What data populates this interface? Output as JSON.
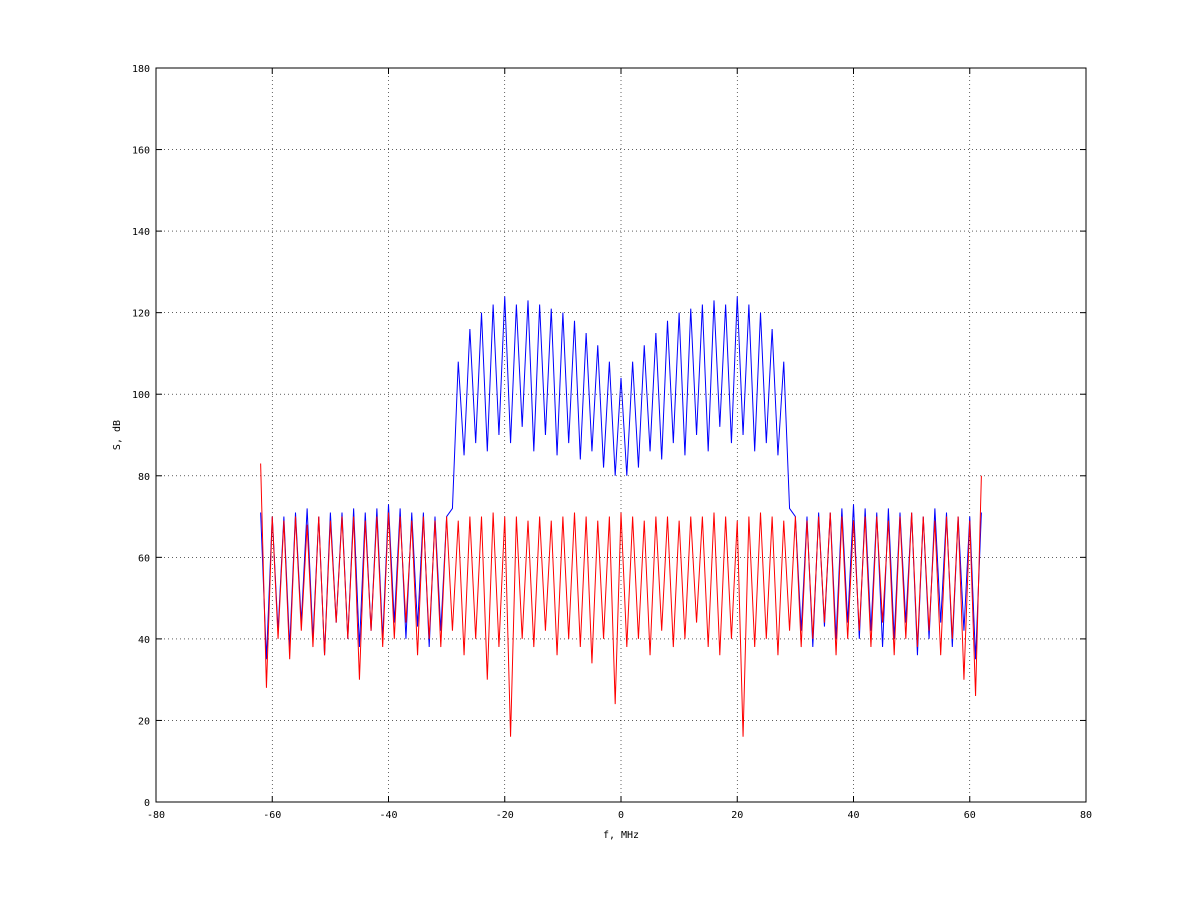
{
  "chart_data": {
    "type": "line",
    "xlabel": "f, MHz",
    "ylabel": "S, dB",
    "xlim": [
      -80,
      80
    ],
    "xticks": [
      -80,
      -60,
      -40,
      -20,
      0,
      20,
      40,
      60,
      80
    ],
    "ylim": [
      0,
      180
    ],
    "yticks": [
      0,
      20,
      40,
      60,
      80,
      100,
      120,
      140,
      160,
      180
    ],
    "grid": true,
    "x": [
      -62,
      -61,
      -60,
      -59,
      -58,
      -57,
      -56,
      -55,
      -54,
      -53,
      -52,
      -51,
      -50,
      -49,
      -48,
      -47,
      -46,
      -45,
      -44,
      -43,
      -42,
      -41,
      -40,
      -39,
      -38,
      -37,
      -36,
      -35,
      -34,
      -33,
      -32,
      -31,
      -30,
      -29,
      -28,
      -27,
      -26,
      -25,
      -24,
      -23,
      -22,
      -21,
      -20,
      -19,
      -18,
      -17,
      -16,
      -15,
      -14,
      -13,
      -12,
      -11,
      -10,
      -9,
      -8,
      -7,
      -6,
      -5,
      -4,
      -3,
      -2,
      -1,
      0,
      1,
      2,
      3,
      4,
      5,
      6,
      7,
      8,
      9,
      10,
      11,
      12,
      13,
      14,
      15,
      16,
      17,
      18,
      19,
      20,
      21,
      22,
      23,
      24,
      25,
      26,
      27,
      28,
      29,
      30,
      31,
      32,
      33,
      34,
      35,
      36,
      37,
      38,
      39,
      40,
      41,
      42,
      43,
      44,
      45,
      46,
      47,
      48,
      49,
      50,
      51,
      52,
      53,
      54,
      55,
      56,
      57,
      58,
      59,
      60,
      61,
      62
    ],
    "series": [
      {
        "color": "#0000ff",
        "values": [
          71,
          35,
          70,
          42,
          70,
          38,
          71,
          44,
          72,
          40,
          70,
          36,
          71,
          44,
          71,
          40,
          72,
          38,
          71,
          42,
          72,
          40,
          73,
          44,
          72,
          40,
          71,
          43,
          71,
          38,
          70,
          42,
          70,
          72,
          108,
          85,
          116,
          88,
          120,
          86,
          122,
          90,
          124,
          88,
          122,
          92,
          123,
          86,
          122,
          90,
          121,
          85,
          120,
          88,
          118,
          84,
          115,
          86,
          112,
          82,
          108,
          80,
          104,
          80,
          108,
          82,
          112,
          86,
          115,
          84,
          118,
          88,
          120,
          85,
          121,
          90,
          122,
          86,
          123,
          92,
          122,
          88,
          124,
          90,
          122,
          86,
          120,
          88,
          116,
          85,
          108,
          72,
          70,
          42,
          70,
          38,
          71,
          43,
          71,
          40,
          72,
          44,
          73,
          40,
          72,
          42,
          71,
          38,
          72,
          40,
          71,
          44,
          71,
          36,
          70,
          40,
          72,
          44,
          71,
          38,
          70,
          42,
          70,
          35,
          71
        ]
      },
      {
        "color": "#ff0000",
        "values": [
          83,
          28,
          70,
          40,
          69,
          35,
          70,
          42,
          68,
          38,
          70,
          36,
          69,
          44,
          70,
          40,
          70,
          30,
          69,
          42,
          70,
          38,
          71,
          40,
          70,
          44,
          69,
          36,
          70,
          40,
          69,
          38,
          70,
          42,
          69,
          36,
          70,
          40,
          70,
          30,
          71,
          38,
          70,
          16,
          70,
          40,
          69,
          38,
          70,
          42,
          69,
          36,
          70,
          40,
          71,
          38,
          70,
          34,
          69,
          40,
          70,
          24,
          71,
          38,
          70,
          40,
          69,
          36,
          70,
          42,
          70,
          38,
          69,
          40,
          70,
          44,
          70,
          38,
          71,
          36,
          70,
          40,
          69,
          16,
          70,
          38,
          71,
          40,
          70,
          36,
          69,
          42,
          70,
          38,
          69,
          40,
          70,
          44,
          71,
          36,
          70,
          40,
          69,
          42,
          70,
          38,
          70,
          44,
          69,
          36,
          70,
          40,
          71,
          38,
          70,
          42,
          69,
          36,
          70,
          40,
          70,
          30,
          69,
          26,
          80
        ]
      }
    ]
  }
}
